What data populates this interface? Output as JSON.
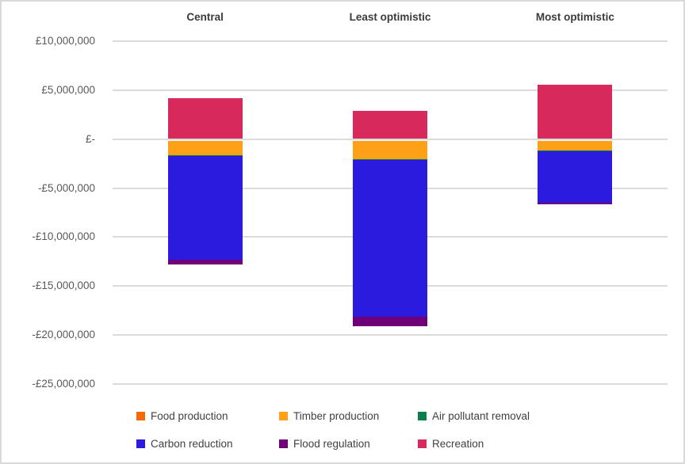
{
  "chart_data": {
    "type": "bar",
    "subtype": "stacked-column-with-negatives",
    "title": "",
    "categories": [
      "Central",
      "Least optimistic",
      "Most optimistic"
    ],
    "series": [
      {
        "name": "Food production",
        "color": "#F5690B",
        "values": [
          0,
          0,
          0
        ]
      },
      {
        "name": "Timber production",
        "color": "#FFA019",
        "values": [
          -1.45,
          -1.9,
          -1.0
        ]
      },
      {
        "name": "Air pollutant removal",
        "color": "#0B7D4F",
        "values": [
          -0.08,
          -0.08,
          -0.06
        ]
      },
      {
        "name": "Carbon reduction",
        "color": "#2B1BDE",
        "values": [
          -10.65,
          -16.0,
          -5.25
        ]
      },
      {
        "name": "Flood regulation",
        "color": "#700077",
        "values": [
          -0.45,
          -0.95,
          -0.18
        ]
      },
      {
        "name": "Recreation",
        "color": "#D7295B",
        "values": [
          4.1,
          2.8,
          5.5
        ]
      }
    ],
    "units": "GBP millions",
    "xlabel": "",
    "ylabel": "",
    "ylim": [
      -25,
      10
    ],
    "grid": true,
    "legend_position": "bottom",
    "y_axis_ticks": [
      {
        "value": 10,
        "label": "£10,000,000"
      },
      {
        "value": 5,
        "label": "£5,000,000"
      },
      {
        "value": 0,
        "label": "£-"
      },
      {
        "value": -5,
        "label": "-£5,000,000"
      },
      {
        "value": -10,
        "label": "-£10,000,000"
      },
      {
        "value": -15,
        "label": "-£15,000,000"
      },
      {
        "value": -20,
        "label": "-£20,000,000"
      },
      {
        "value": -25,
        "label": "-£25,000,000"
      }
    ],
    "colors": {
      "gridline": "#DBDBDB",
      "axis_label_text": "#595959",
      "header_text": "#3B3B3B",
      "legend_text": "#404040",
      "border": "#D9D9D9",
      "background": "#FFFFFF"
    }
  }
}
